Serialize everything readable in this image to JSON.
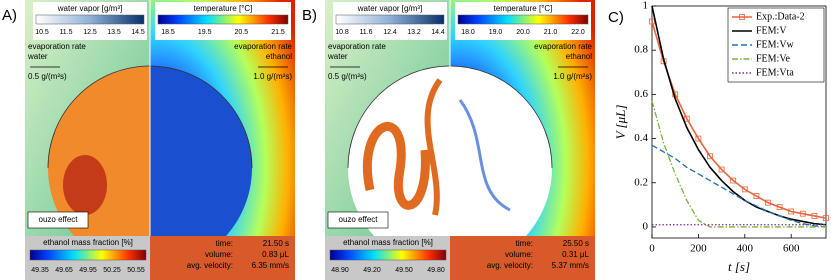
{
  "panels": [
    {
      "label": "A)",
      "water_title": "water vapor [g/m³]",
      "water_ticks": [
        "10.5",
        "11.5",
        "12.5",
        "13.5",
        "14.5"
      ],
      "temp_title": "temperature [°C]",
      "temp_ticks": [
        "18.5",
        "19.5",
        "20.5",
        "21.5"
      ],
      "evap_left": [
        "evaporation rate",
        "water",
        "0.5 g/(m²s)"
      ],
      "evap_right": [
        "evaporation rate",
        "ethanol",
        "1.0 g/(m²s)"
      ],
      "ouzo": "ouzo effect",
      "ethanol_title": "ethanol mass fraction [%]",
      "ethanol_ticks": [
        "49.35",
        "49.65",
        "49.95",
        "50.25",
        "50.55"
      ],
      "stats": [
        [
          "time:",
          "21.50 s"
        ],
        [
          "volume:",
          "0.83 μL"
        ],
        [
          "avg. velocity:",
          "6.35 mm/s"
        ]
      ]
    },
    {
      "label": "B)",
      "water_title": "water vapor [g/m³]",
      "water_ticks": [
        "10.8",
        "11.6",
        "12.4",
        "13.2",
        "14.4"
      ],
      "temp_title": "temperature [°C]",
      "temp_ticks": [
        "18.0",
        "19.0",
        "20.0",
        "21.0",
        "22.0"
      ],
      "evap_left": [
        "evaporation rate",
        "water",
        "0.5 g/(m²s)"
      ],
      "evap_right": [
        "evaporation rate",
        "ethanol",
        "1.0 g/(m²s)"
      ],
      "ouzo": "ouzo effect",
      "ethanol_title": "ethanol mass fraction [%]",
      "ethanol_ticks": [
        "48.90",
        "49.20",
        "49.50",
        "49.80"
      ],
      "stats": [
        [
          "time:",
          "25.50 s"
        ],
        [
          "volume:",
          "0.31 μL"
        ],
        [
          "avg. velocity:",
          "5.37 mm/s"
        ]
      ]
    }
  ],
  "chart_data": {
    "type": "line",
    "panel_label": "C)",
    "x_label": "t [s]",
    "y_label": "V [μL]",
    "x": [
      0,
      50,
      100,
      150,
      200,
      250,
      300,
      350,
      400,
      450,
      500,
      550,
      600,
      650,
      700,
      750
    ],
    "series": [
      {
        "name": "Exp.:Data-2",
        "color": "#e8643a",
        "dash": "solid",
        "marker": "square",
        "values": [
          0.93,
          0.75,
          0.6,
          0.49,
          0.4,
          0.32,
          0.26,
          0.21,
          0.17,
          0.14,
          0.11,
          0.09,
          0.07,
          0.06,
          0.05,
          0.04
        ]
      },
      {
        "name": "FEM:V",
        "color": "#000000",
        "dash": "solid",
        "values": [
          1.0,
          0.76,
          0.58,
          0.45,
          0.35,
          0.27,
          0.21,
          0.16,
          0.12,
          0.09,
          0.07,
          0.05,
          0.035,
          0.025,
          0.015,
          0.01
        ]
      },
      {
        "name": "FEM:Vw",
        "color": "#1f6fb5",
        "dash": "dashed",
        "values": [
          0.37,
          0.34,
          0.31,
          0.27,
          0.24,
          0.21,
          0.18,
          0.15,
          0.12,
          0.095,
          0.07,
          0.05,
          0.03,
          0.015,
          0.005,
          0
        ]
      },
      {
        "name": "FEM:Ve",
        "color": "#7ab33c",
        "dash": "dashdot",
        "values": [
          0.57,
          0.38,
          0.24,
          0.12,
          0.03,
          0,
          0,
          0,
          0,
          0,
          0,
          0,
          0,
          0,
          0,
          0
        ]
      },
      {
        "name": "FEM:Vta",
        "color": "#7b2f9e",
        "dash": "dotted",
        "values": [
          0.01,
          0.01,
          0.01,
          0.01,
          0.01,
          0.01,
          0.01,
          0.01,
          0.01,
          0.01,
          0.01,
          0.01,
          0.01,
          0.01,
          0.01,
          0.01
        ]
      }
    ],
    "xlim": [
      0,
      750
    ],
    "xticks": [
      0,
      200,
      400,
      600
    ],
    "ylim": [
      -0.05,
      1
    ],
    "yticks": [
      0,
      0.2,
      0.4,
      0.6,
      0.8,
      1
    ],
    "legend": "upper right"
  }
}
